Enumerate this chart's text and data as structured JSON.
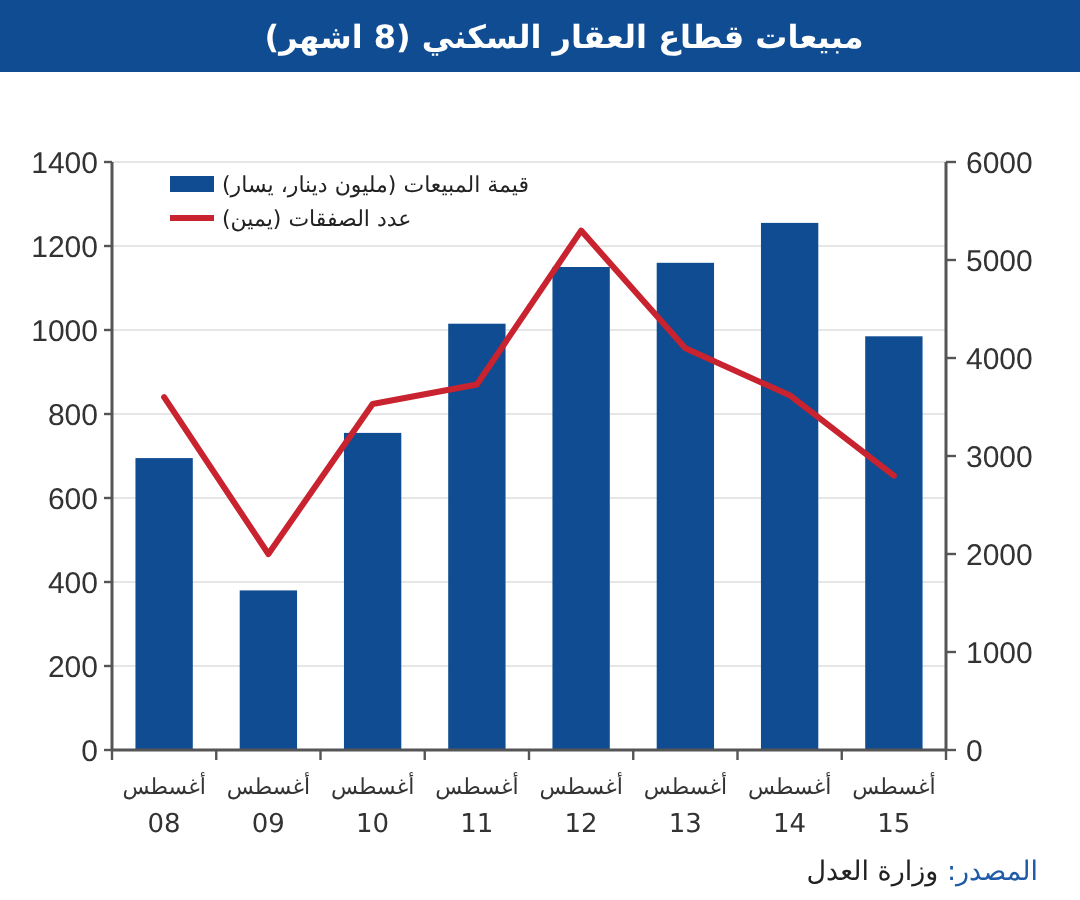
{
  "chart_data": {
    "type": "bar",
    "title": "مبيعات قطاع العقار السكني (8 اشهر)",
    "categories": [
      "أغسطس 08",
      "أغسطس 09",
      "أغسطس 10",
      "أغسطس 11",
      "أغسطس 12",
      "أغسطس 13",
      "أغسطس 14",
      "أغسطس 15"
    ],
    "series": [
      {
        "name": "قيمة المبيعات (مليون دينار، يسار)",
        "color": "#0f4c92",
        "values": [
          695,
          380,
          755,
          1015,
          1150,
          1160,
          1255,
          985
        ]
      },
      {
        "name": "عدد الصفقات (يمين)",
        "type": "line",
        "axis": "y2",
        "color": "#c8232e",
        "values": [
          3600,
          2000,
          3530,
          3730,
          5300,
          4100,
          3620,
          2800
        ]
      }
    ],
    "ylim": [
      0,
      1400
    ],
    "yticks": [
      0,
      200,
      400,
      600,
      800,
      1000,
      1200,
      1400
    ],
    "y2lim": [
      0,
      6000
    ],
    "y2ticks": [
      0,
      1000,
      2000,
      3000,
      4000,
      5000,
      6000
    ],
    "grid": "y",
    "legend": "top left",
    "annotations": [
      "المصدر: وزارة العدل"
    ]
  }
}
